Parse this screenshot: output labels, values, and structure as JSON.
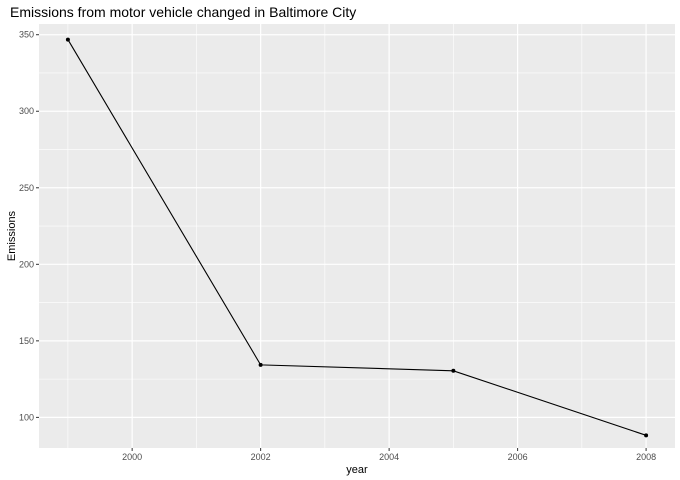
{
  "chart_data": {
    "type": "line",
    "title": "Emissions from motor vehicle changed in Baltimore City",
    "xlabel": "year",
    "ylabel": "Emissions",
    "x": [
      1999,
      2002,
      2005,
      2008
    ],
    "series": [
      {
        "values": [
          346.82,
          134.31,
          130.43,
          88.28
        ]
      }
    ],
    "xlim": [
      1998.55,
      2008.45
    ],
    "ylim": [
      80,
      357
    ],
    "x_ticks": [
      2000,
      2002,
      2004,
      2006,
      2008
    ],
    "x_tick_labels": [
      "2000",
      "2002",
      "2004",
      "2006",
      "2008"
    ],
    "y_ticks": [
      100,
      150,
      200,
      250,
      300,
      350
    ],
    "y_tick_labels": [
      "100",
      "150",
      "200",
      "250",
      "300",
      "350"
    ],
    "grid": true,
    "legend": "none",
    "colors": {
      "panel_background": "#ebebeb",
      "grid_major": "#ffffff",
      "line": "#000000",
      "tick_label": "#4d4d4d"
    }
  }
}
